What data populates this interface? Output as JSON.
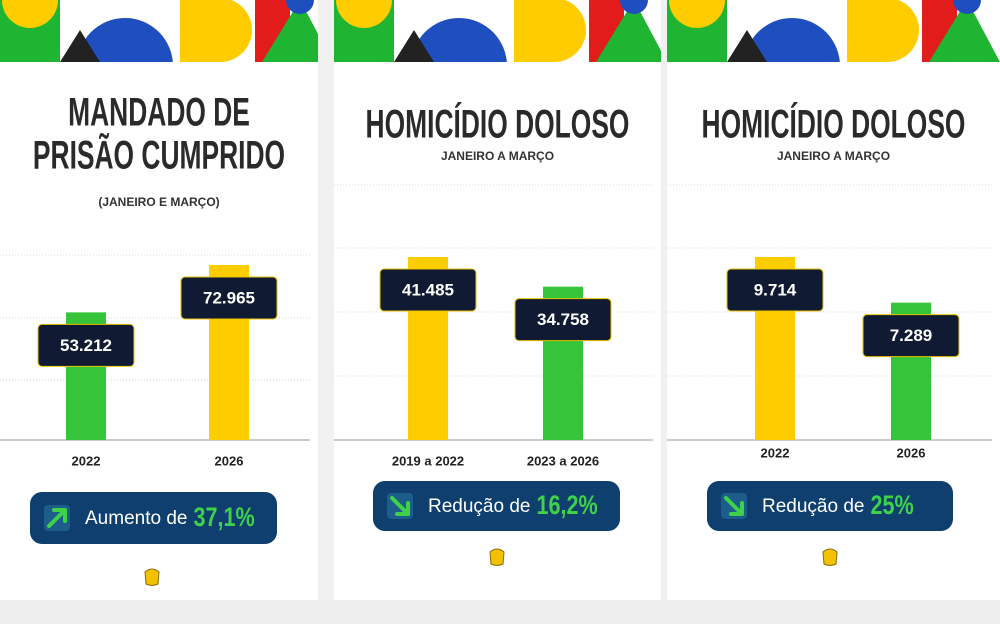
{
  "chart_data": [
    {
      "type": "bar",
      "title": [
        "MANDADO DE",
        "PRISÃO CUMPRIDO"
      ],
      "subtitle": "(JANEIRO E MARÇO)",
      "categories": [
        "2022",
        "2026"
      ],
      "values": [
        53212,
        72965
      ],
      "value_labels": [
        "53.212",
        "72.965"
      ],
      "colors": [
        "#35c43a",
        "#ffcc00"
      ],
      "annotation": {
        "text": "Aumento de",
        "highlight": "37,1%",
        "direction": "up"
      }
    },
    {
      "type": "bar",
      "title": [
        "HOMICÍDIO DOLOSO"
      ],
      "subtitle": "JANEIRO A MARÇO",
      "categories": [
        "2019 a 2022",
        "2023 a 2026"
      ],
      "values": [
        41485,
        34758
      ],
      "value_labels": [
        "41.485",
        "34.758"
      ],
      "colors": [
        "#ffcc00",
        "#35c43a"
      ],
      "annotation": {
        "text": "Redução de",
        "highlight": "16,2%",
        "direction": "down"
      }
    },
    {
      "type": "bar",
      "title": [
        "HOMICÍDIO DOLOSO"
      ],
      "subtitle": "JANEIRO A MARÇO",
      "categories": [
        "2022",
        "2026"
      ],
      "values": [
        9714,
        7289
      ],
      "value_labels": [
        "9.714",
        "7.289"
      ],
      "colors": [
        "#ffcc00",
        "#35c43a"
      ],
      "annotation": {
        "text": "Redução de",
        "highlight": "25%",
        "direction": "down"
      }
    }
  ]
}
